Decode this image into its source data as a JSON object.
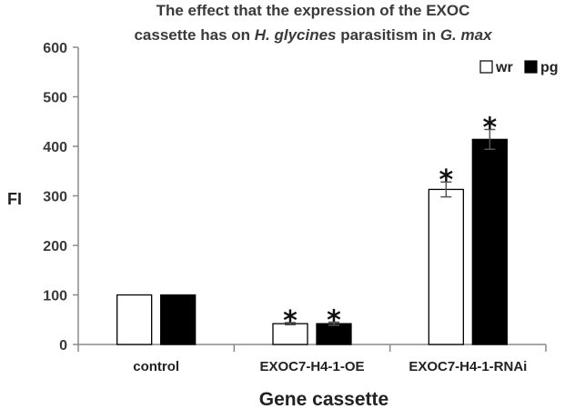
{
  "chart_data": {
    "type": "bar",
    "title_line1": "The effect that the expression of the EXOC",
    "title_line2_prefix": "cassette has on ",
    "title_line2_italic1": "H. glycines",
    "title_line2_mid": " parasitism in ",
    "title_line2_italic2": "G. max",
    "xlabel": "Gene cassette",
    "ylabel": "FI",
    "ylim": [
      0,
      600
    ],
    "yticks": [
      "0",
      "100",
      "200",
      "300",
      "400",
      "500",
      "600"
    ],
    "categories": [
      "control",
      "EXOC7-H4-1-OE",
      "EXOC7-H4-1-RNAi"
    ],
    "series": [
      {
        "name": "wr",
        "color": "#ffffff",
        "values": [
          100,
          42,
          313
        ],
        "errors": [
          0,
          2,
          15
        ],
        "significant": [
          false,
          true,
          true
        ]
      },
      {
        "name": "pg",
        "color": "#000000",
        "values": [
          100,
          42,
          414
        ],
        "errors": [
          0,
          3,
          20
        ],
        "significant": [
          false,
          true,
          true
        ]
      }
    ],
    "significance_marker": "*",
    "legend_position": "top-right",
    "grid": false
  }
}
